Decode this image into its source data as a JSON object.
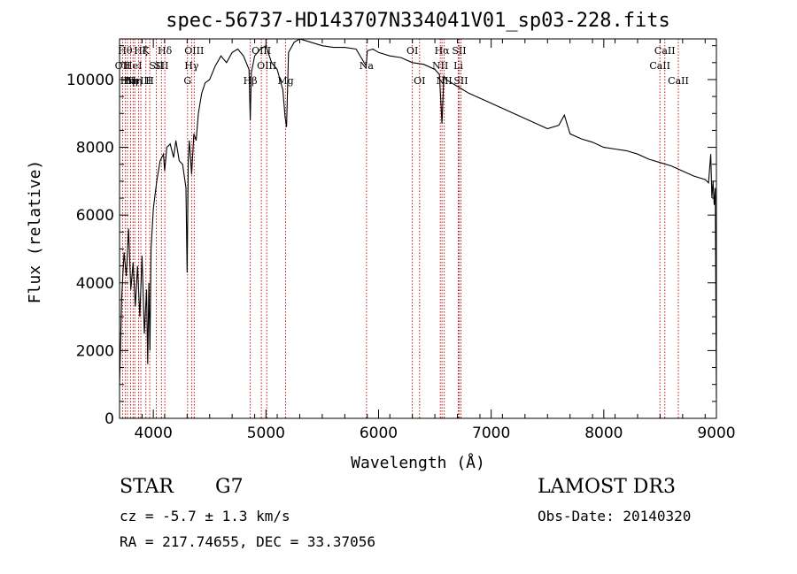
{
  "chart_data": {
    "type": "line",
    "title": "spec-56737-HD143707N334041V01_sp03-228.fits",
    "xlabel": "Wavelength (Å)",
    "ylabel": "Flux (relative)",
    "xlim": [
      3700,
      9000
    ],
    "ylim": [
      0,
      11200
    ],
    "xticks": [
      4000,
      5000,
      6000,
      7000,
      8000,
      9000
    ],
    "yticks": [
      0,
      2000,
      4000,
      6000,
      8000,
      10000
    ],
    "series": [
      {
        "name": "spectrum",
        "x": [
          3700,
          3720,
          3740,
          3760,
          3780,
          3800,
          3820,
          3840,
          3860,
          3880,
          3900,
          3920,
          3940,
          3950,
          3960,
          3970,
          3980,
          4000,
          4030,
          4060,
          4090,
          4100,
          4120,
          4150,
          4180,
          4200,
          4230,
          4260,
          4290,
          4300,
          4310,
          4320,
          4340,
          4360,
          4380,
          4400,
          4430,
          4460,
          4500,
          4550,
          4600,
          4650,
          4700,
          4750,
          4800,
          4850,
          4861,
          4870,
          4900,
          4950,
          5000,
          5050,
          5100,
          5150,
          5170,
          5183,
          5200,
          5250,
          5300,
          5400,
          5500,
          5600,
          5700,
          5800,
          5890,
          5900,
          5950,
          6000,
          6100,
          6200,
          6300,
          6400,
          6500,
          6540,
          6563,
          6580,
          6600,
          6650,
          6700,
          6750,
          6800,
          6900,
          7000,
          7100,
          7200,
          7300,
          7400,
          7500,
          7600,
          7650,
          7700,
          7800,
          7900,
          8000,
          8100,
          8200,
          8300,
          8400,
          8500,
          8600,
          8700,
          8800,
          8900,
          8930,
          8950,
          8960,
          8970,
          8980,
          8990,
          9000
        ],
        "y": [
          1000,
          3600,
          4900,
          4200,
          5600,
          3800,
          4600,
          3300,
          4500,
          3000,
          4800,
          2500,
          3800,
          1600,
          4000,
          2000,
          5000,
          6200,
          7000,
          7600,
          7800,
          7300,
          8000,
          8100,
          7700,
          8200,
          7600,
          7500,
          6800,
          4300,
          7600,
          8200,
          7200,
          8400,
          8200,
          9000,
          9600,
          9900,
          10000,
          10400,
          10700,
          10500,
          10800,
          10900,
          10700,
          10300,
          8800,
          10200,
          10700,
          10900,
          11000,
          10500,
          10300,
          9700,
          8900,
          8600,
          10800,
          11100,
          11200,
          11100,
          11000,
          10950,
          10950,
          10900,
          10400,
          10850,
          10900,
          10800,
          10700,
          10650,
          10500,
          10450,
          10300,
          10150,
          8700,
          10100,
          10000,
          9900,
          9800,
          9700,
          9600,
          9450,
          9300,
          9150,
          9000,
          8850,
          8700,
          8550,
          8650,
          8950,
          8400,
          8250,
          8150,
          8000,
          7950,
          7900,
          7800,
          7650,
          7550,
          7450,
          7300,
          7150,
          7050,
          6950,
          7800,
          6500,
          7000,
          6300,
          6800,
          600
        ]
      }
    ],
    "line_markers": [
      {
        "x": 3727,
        "label": "OII",
        "row": 1
      },
      {
        "x": 3750,
        "label": "Hθ",
        "row": 0
      },
      {
        "x": 3770,
        "label": "Hη",
        "row": 2
      },
      {
        "x": 3798,
        "label": "Hη",
        "row": 2
      },
      {
        "x": 3820,
        "label": "HeI",
        "row": 1
      },
      {
        "x": 3835,
        "label": "Hη",
        "row": 2
      },
      {
        "x": 3869,
        "label": "NeIII",
        "row": 2
      },
      {
        "x": 3889,
        "label": "Hζ",
        "row": 0
      },
      {
        "x": 3934,
        "label": "K",
        "row": 0
      },
      {
        "x": 3968,
        "label": "H",
        "row": 2
      },
      {
        "x": 4026,
        "label": "SII",
        "row": 1
      },
      {
        "x": 4072,
        "label": "SII",
        "row": 1
      },
      {
        "x": 4102,
        "label": "Hδ",
        "row": 0
      },
      {
        "x": 4304,
        "label": "G",
        "row": 2
      },
      {
        "x": 4340,
        "label": "Hγ",
        "row": 1
      },
      {
        "x": 4363,
        "label": "OIII",
        "row": 0
      },
      {
        "x": 4861,
        "label": "Hβ",
        "row": 2
      },
      {
        "x": 4959,
        "label": "OIII",
        "row": 0
      },
      {
        "x": 5007,
        "label": "OIII",
        "row": 1
      },
      {
        "x": 5175,
        "label": "Mg",
        "row": 2
      },
      {
        "x": 5893,
        "label": "Na",
        "row": 1
      },
      {
        "x": 6300,
        "label": "OI",
        "row": 0
      },
      {
        "x": 6364,
        "label": "OI",
        "row": 2
      },
      {
        "x": 6548,
        "label": "NII",
        "row": 1
      },
      {
        "x": 6563,
        "label": "Hα",
        "row": 0
      },
      {
        "x": 6583,
        "label": "NII",
        "row": 2
      },
      {
        "x": 6708,
        "label": "Li",
        "row": 1
      },
      {
        "x": 6716,
        "label": "SII",
        "row": 0
      },
      {
        "x": 6731,
        "label": "SII",
        "row": 2
      },
      {
        "x": 8498,
        "label": "CaII",
        "row": 1
      },
      {
        "x": 8542,
        "label": "CaII",
        "row": 0
      },
      {
        "x": 8662,
        "label": "CaII",
        "row": 2
      }
    ]
  },
  "info": {
    "object_type": "STAR",
    "subclass": "G7",
    "survey": "LAMOST DR3",
    "cz": "cz = -5.7 ± 1.3 km/s",
    "obs_date": "Obs-Date: 20140320",
    "radec": "RA = 217.74655, DEC =  33.37056"
  },
  "colors": {
    "marker": "#c00000",
    "spectrum": "#000000",
    "axis": "#000000"
  }
}
